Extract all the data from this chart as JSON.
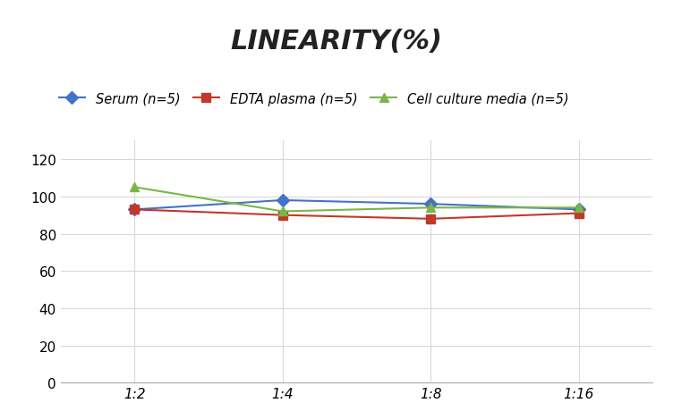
{
  "title": "LINEARITY(%)",
  "title_fontsize": 22,
  "x_labels": [
    "1:2",
    "1:4",
    "1:8",
    "1:16"
  ],
  "x_positions": [
    0,
    1,
    2,
    3
  ],
  "series": [
    {
      "label": "Serum (n=5)",
      "values": [
        93,
        98,
        96,
        93
      ],
      "color": "#4472C4",
      "marker": "D",
      "linewidth": 1.5
    },
    {
      "label": "EDTA plasma (n=5)",
      "values": [
        93,
        90,
        88,
        91
      ],
      "color": "#C0392B",
      "marker": "s",
      "linewidth": 1.5
    },
    {
      "label": "Cell culture media (n=5)",
      "values": [
        105,
        92,
        94,
        94
      ],
      "color": "#7AB648",
      "marker": "^",
      "linewidth": 1.5
    }
  ],
  "ylim": [
    0,
    130
  ],
  "yticks": [
    0,
    20,
    40,
    60,
    80,
    100,
    120
  ],
  "grid_color": "#D9D9D9",
  "background_color": "#FFFFFF",
  "legend_fontsize": 10.5,
  "tick_fontsize": 11
}
